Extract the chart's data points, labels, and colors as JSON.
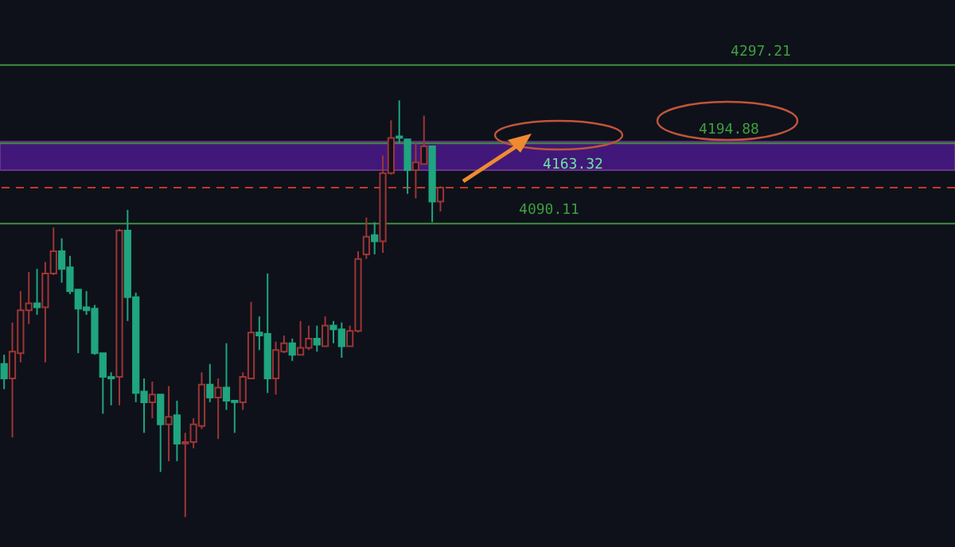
{
  "chart_data": {
    "type": "candlestick",
    "categories": [
      null,
      null,
      null,
      null,
      null,
      null,
      null,
      null,
      null,
      null,
      null,
      null,
      null,
      null,
      null,
      null,
      null,
      null,
      null,
      null,
      null,
      null,
      null,
      null,
      null,
      null,
      null,
      null,
      null,
      null,
      null,
      null,
      null,
      null,
      null,
      null,
      null,
      null,
      null,
      null,
      null,
      null,
      null,
      null,
      null,
      null,
      null,
      null,
      null,
      null,
      null,
      null,
      null,
      null,
      null,
      null,
      null,
      null,
      null,
      null,
      null,
      null,
      null,
      null,
      null,
      null,
      null,
      null,
      null,
      null,
      null,
      null,
      null,
      null,
      null,
      null,
      null,
      null,
      null,
      null,
      null,
      null,
      null,
      null,
      null,
      null,
      null,
      null,
      null,
      null,
      null,
      null,
      null,
      null,
      null,
      null,
      null,
      null,
      null,
      null,
      null,
      null,
      null,
      null,
      null,
      null,
      null,
      null,
      null,
      null,
      null,
      null,
      null,
      null,
      null,
      null
    ],
    "ohlc": [
      [
        3888,
        3919,
        3874,
        3907
      ],
      [
        3923,
        3961,
        3811,
        3888
      ],
      [
        3977,
        4002,
        3909,
        3921
      ],
      [
        3986,
        4027,
        3959,
        3977
      ],
      [
        3981,
        4031,
        3971,
        3986
      ],
      [
        4025,
        4040,
        3909,
        3981
      ],
      [
        4054,
        4085,
        4023,
        4025
      ],
      [
        4031,
        4071,
        4013,
        4054
      ],
      [
        4002,
        4048,
        3998,
        4033
      ],
      [
        3979,
        4004,
        3921,
        4004
      ],
      [
        3977,
        4002,
        3971,
        3981
      ],
      [
        3921,
        3984,
        3919,
        3979
      ],
      [
        3890,
        3921,
        3842,
        3921
      ],
      [
        3888,
        3896,
        3853,
        3890
      ],
      [
        4081,
        4083,
        3853,
        3890
      ],
      [
        3994,
        4108,
        3963,
        4081
      ],
      [
        3869,
        4000,
        3857,
        3994
      ],
      [
        3857,
        3888,
        3817,
        3871
      ],
      [
        3867,
        3884,
        3836,
        3857
      ],
      [
        3828,
        3867,
        3766,
        3867
      ],
      [
        3838,
        3878,
        3780,
        3828
      ],
      [
        3803,
        3859,
        3780,
        3840
      ],
      [
        3805,
        3817,
        3707,
        3803
      ],
      [
        3828,
        3836,
        3797,
        3805
      ],
      [
        3880,
        3896,
        3822,
        3826
      ],
      [
        3863,
        3907,
        3857,
        3880
      ],
      [
        3876,
        3888,
        3809,
        3863
      ],
      [
        3859,
        3934,
        3847,
        3876
      ],
      [
        3857,
        3859,
        3817,
        3859
      ],
      [
        3890,
        3896,
        3847,
        3857
      ],
      [
        3948,
        3988,
        3888,
        3888
      ],
      [
        3944,
        3969,
        3925,
        3948
      ],
      [
        3888,
        4025,
        3869,
        3946
      ],
      [
        3925,
        3936,
        3867,
        3888
      ],
      [
        3934,
        3944,
        3921,
        3923
      ],
      [
        3919,
        3940,
        3911,
        3934
      ],
      [
        3928,
        3963,
        3919,
        3919
      ],
      [
        3940,
        3957,
        3925,
        3928
      ],
      [
        3932,
        3957,
        3923,
        3940
      ],
      [
        3957,
        3969,
        3930,
        3930
      ],
      [
        3952,
        3963,
        3934,
        3957
      ],
      [
        3930,
        3961,
        3915,
        3952
      ],
      [
        3950,
        3957,
        3930,
        3930
      ],
      [
        4044,
        4054,
        3948,
        3950
      ],
      [
        4073,
        4098,
        4044,
        4050
      ],
      [
        4067,
        4092,
        4050,
        4075
      ],
      [
        4156,
        4179,
        4052,
        4067
      ],
      [
        4202,
        4225,
        4154,
        4156
      ],
      [
        4202,
        4251,
        4195,
        4204
      ],
      [
        4160,
        4200,
        4129,
        4200
      ],
      [
        4170,
        4195,
        4123,
        4160
      ],
      [
        4191,
        4231,
        4168,
        4168
      ],
      [
        4119,
        4191,
        4092,
        4191
      ],
      [
        4137,
        4139,
        4106,
        4119
      ],
      null,
      null,
      null,
      null,
      null,
      null,
      null,
      null,
      null,
      null,
      null,
      null,
      null,
      null,
      null,
      null,
      null,
      null,
      null,
      null,
      null,
      null,
      null,
      null,
      null,
      null,
      null,
      null,
      null,
      null,
      null,
      null,
      null,
      null,
      null,
      null,
      null,
      null,
      null,
      null,
      null,
      null,
      null,
      null,
      null,
      null,
      null,
      null,
      null,
      null,
      null,
      null,
      null,
      null,
      null,
      null,
      null,
      null,
      null,
      null,
      null,
      null
    ],
    "colors": [
      "#1fa57f",
      "#9e3535",
      "#9e3535",
      "#9e3535",
      "#1fa57f",
      "#9e3535",
      "#9e3535",
      "#1fa57f",
      "#1fa57f",
      "#1fa57f",
      "#1fa57f",
      "#1fa57f",
      "#1fa57f",
      "#1fa57f",
      "#9e3535",
      "#1fa57f",
      "#1fa57f",
      "#1fa57f",
      "#9e3535",
      "#1fa57f",
      "#9e3535",
      "#1fa57f",
      "#9e3535",
      "#9e3535",
      "#9e3535",
      "#1fa57f",
      "#9e3535",
      "#1fa57f",
      "#1fa57f",
      "#9e3535",
      "#9e3535",
      "#1fa57f",
      "#1fa57f",
      "#9e3535",
      "#9e3535",
      "#1fa57f",
      "#9e3535",
      "#9e3535",
      "#1fa57f",
      "#9e3535",
      "#1fa57f",
      "#1fa57f",
      "#9e3535",
      "#9e3535",
      "#9e3535",
      "#1fa57f",
      "#9e3535",
      "#9e3535",
      "#1fa57f",
      "#1fa57f",
      "#9e3535",
      "#9e3535",
      "#1fa57f",
      "#9e3535",
      null,
      null,
      null,
      null,
      null,
      null,
      null,
      null,
      null,
      null,
      null,
      null,
      null,
      null,
      null,
      null,
      null,
      null,
      null,
      null,
      null,
      null,
      null,
      null,
      null,
      null,
      null,
      null,
      null,
      null,
      null,
      null,
      null,
      null,
      null,
      null,
      null,
      null,
      null,
      null,
      null,
      null,
      null,
      null,
      null,
      null,
      null,
      null,
      null,
      null,
      null,
      null,
      null,
      null,
      null,
      null,
      null,
      null,
      null,
      null,
      null,
      null
    ],
    "ylim": [
      3668,
      4382
    ],
    "bands": [
      {
        "axis": "y",
        "from": 4160,
        "to": 4197,
        "label": "4163.32",
        "color": "#4a1a8a"
      }
    ],
    "ref_lines": [
      {
        "axis": "y",
        "value": 4297.21,
        "label": "4297.21",
        "color": "#3f8f3f"
      },
      {
        "axis": "y",
        "value": 4194.88,
        "label": "4194.88",
        "color": "#3f8f3f"
      },
      {
        "axis": "y",
        "value": 4090.11,
        "label": "4090.11",
        "color": "#3f8f3f"
      },
      {
        "axis": "y",
        "value": 4137,
        "color": "#c0392b",
        "line_style": "dashed"
      }
    ]
  }
}
